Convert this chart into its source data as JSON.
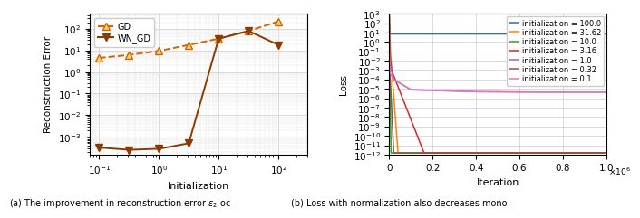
{
  "left_plot": {
    "gd_x": [
      0.1,
      0.316,
      1.0,
      3.16,
      10.0,
      31.62,
      100.0
    ],
    "gd_y": [
      4.5,
      6.2,
      9.5,
      18.0,
      35.0,
      80.0,
      220.0
    ],
    "wn_x": [
      0.1,
      0.316,
      1.0,
      3.16,
      10.0,
      31.62,
      100.0
    ],
    "wn_y": [
      0.00032,
      0.00025,
      0.00028,
      0.0005,
      35.0,
      80.0,
      18.0
    ],
    "xlabel": "Initialization",
    "ylabel": "Reconstruction Error",
    "gd_color": "#CC6600",
    "gd_marker_face": "#FFD070",
    "wn_color": "#8B3A00",
    "xlim": [
      0.07,
      300
    ],
    "ylim": [
      0.00015,
      500.0
    ]
  },
  "right_plot": {
    "xlabel": "Iteration",
    "ylabel": "Loss",
    "ylim": [
      1e-12,
      1000.0
    ],
    "xlim": [
      0,
      1000000
    ],
    "xticks": [
      0,
      200000,
      400000,
      600000,
      800000,
      1000000
    ],
    "xtick_labels": [
      "0",
      "0.2",
      "0.4",
      "0.6",
      "0.8",
      "1.0"
    ],
    "yticks_major": [
      1e-11,
      1e-09,
      1e-07,
      1e-05,
      0.001,
      0.1,
      10,
      1000
    ],
    "curves": [
      {
        "label": "initialization = 100.0",
        "color": "#1f77b4",
        "x": [
          0,
          3000,
          1000000
        ],
        "y": [
          700,
          7,
          7
        ]
      },
      {
        "label": "initialization = 31.62",
        "color": "#ff7f0e",
        "x": [
          0,
          1500,
          5000,
          40000,
          1000000
        ],
        "y": [
          700,
          30,
          0.1,
          1.5e-12,
          1.5e-12
        ]
      },
      {
        "label": "initialization = 10.0",
        "color": "#2ca02c",
        "x": [
          0,
          500,
          8000,
          1000000
        ],
        "y": [
          200,
          0.005,
          1.5e-12,
          1.5e-12
        ]
      },
      {
        "label": "initialization = 3.16",
        "color": "#d62728",
        "x": [
          0,
          2000,
          10000,
          160000,
          1000000
        ],
        "y": [
          50,
          0.05,
          0.001,
          1.5e-12,
          1.5e-12
        ]
      },
      {
        "label": "initialization = 1.0",
        "color": "#9467bd",
        "x": [
          0,
          3000,
          20000,
          100000,
          400000,
          700000,
          1000000
        ],
        "y": [
          7,
          0.005,
          0.0001,
          8e-06,
          5e-06,
          4.5e-06,
          4.5e-06
        ]
      },
      {
        "label": "initialization = 0.32",
        "color": "#8c564b",
        "x": [
          0,
          3000,
          20000,
          1000000
        ],
        "y": [
          0.7,
          0.0005,
          1.5e-12,
          1.5e-12
        ]
      },
      {
        "label": "initialization = 0.1",
        "color": "#e377c2",
        "x": [
          0,
          3000,
          20000,
          100000,
          400000,
          700000,
          1000000
        ],
        "y": [
          0.07,
          0.0005,
          0.0001,
          8e-06,
          5e-06,
          4.5e-06,
          4.5e-06
        ]
      }
    ]
  },
  "caption_a": "(a) The improvement in reconstruction error $\\varepsilon_2$ oc-",
  "caption_b": "(b) Loss with normalization also decreases mono-"
}
